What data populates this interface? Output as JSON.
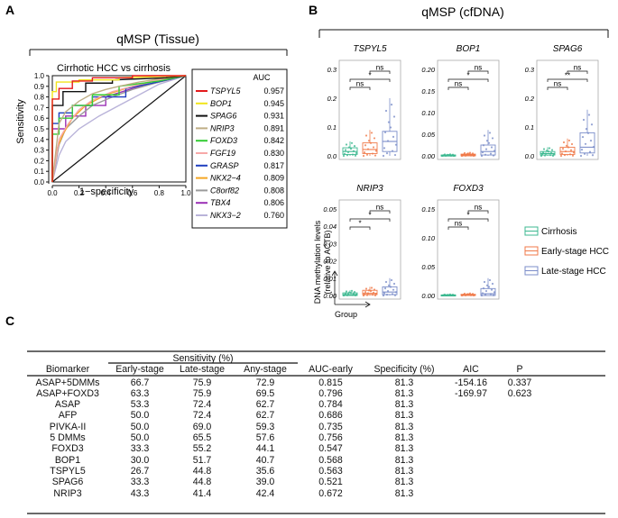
{
  "panel_labels": {
    "a": "A",
    "b": "B",
    "c": "C"
  },
  "chart_data": [
    {
      "type": "line",
      "panel": "A",
      "header": "qMSP (Tissue)",
      "title": "Cirrhotic HCC vs cirrhosis",
      "xlabel": "1−specificity",
      "ylabel": "Sensitivity",
      "xlim": [
        0.0,
        1.0
      ],
      "ylim": [
        0.0,
        1.0
      ],
      "x_ticks": [
        "0.0",
        "0.2",
        "0.4",
        "0.6",
        "0.8",
        "1.0"
      ],
      "y_ticks": [
        "0.0",
        "0.1",
        "0.2",
        "0.3",
        "0.4",
        "0.5",
        "0.6",
        "0.7",
        "0.8",
        "0.9",
        "1.0"
      ],
      "legend_header": "AUC",
      "series": [
        {
          "name": "TSPYL5",
          "auc": "0.957",
          "color": "#e31a1c",
          "x": [
            0,
            0,
            0.05,
            0.05,
            0.15,
            0.15,
            0.3,
            0.3,
            0.6,
            0.6,
            0.85,
            1.0
          ],
          "y": [
            0,
            0.78,
            0.78,
            0.88,
            0.88,
            0.95,
            0.95,
            0.98,
            0.98,
            1.0,
            1.0,
            1.0
          ]
        },
        {
          "name": "BOP1",
          "auc": "0.945",
          "color": "#f2e41b",
          "x": [
            0,
            0,
            0.03,
            0.03,
            0.2,
            0.2,
            0.5,
            0.5,
            1.0
          ],
          "y": [
            0,
            0.85,
            0.85,
            0.94,
            0.94,
            0.96,
            0.96,
            0.98,
            1.0
          ]
        },
        {
          "name": "SPAG6",
          "auc": "0.931",
          "color": "#111111",
          "x": [
            0,
            0,
            0.08,
            0.08,
            0.25,
            0.25,
            0.45,
            0.45,
            0.85,
            1.0
          ],
          "y": [
            0,
            0.72,
            0.72,
            0.85,
            0.85,
            0.93,
            0.93,
            0.96,
            0.98,
            1.0
          ]
        },
        {
          "name": "NRIP3",
          "auc": "0.891",
          "color": "#bfae85",
          "x": [
            0,
            0.05,
            0.1,
            0.2,
            0.3,
            0.4,
            0.5,
            0.65,
            0.8,
            1.0
          ],
          "y": [
            0,
            0.55,
            0.66,
            0.76,
            0.83,
            0.87,
            0.9,
            0.94,
            0.97,
            1.0
          ]
        },
        {
          "name": "FOXD3",
          "auc": "0.842",
          "color": "#33cc33",
          "x": [
            0,
            0,
            0.05,
            0.05,
            0.15,
            0.15,
            0.3,
            0.3,
            0.5,
            0.5,
            0.8,
            1.0
          ],
          "y": [
            0,
            0.45,
            0.45,
            0.6,
            0.6,
            0.72,
            0.72,
            0.82,
            0.82,
            0.9,
            0.95,
            1.0
          ]
        },
        {
          "name": "FGF19",
          "auc": "0.830",
          "color": "#f7a9a8",
          "x": [
            0,
            0.05,
            0.12,
            0.2,
            0.3,
            0.45,
            0.6,
            0.75,
            1.0
          ],
          "y": [
            0,
            0.4,
            0.55,
            0.68,
            0.77,
            0.85,
            0.9,
            0.95,
            1.0
          ]
        },
        {
          "name": "GRASP",
          "auc": "0.817",
          "color": "#1f3fbf",
          "x": [
            0,
            0,
            0.05,
            0.05,
            0.15,
            0.15,
            0.3,
            0.3,
            0.55,
            0.55,
            0.75,
            1.0
          ],
          "y": [
            0,
            0.55,
            0.55,
            0.65,
            0.65,
            0.72,
            0.72,
            0.8,
            0.8,
            0.88,
            0.93,
            1.0
          ]
        },
        {
          "name": "NKX2−4",
          "auc": "0.809",
          "color": "#f5a623",
          "x": [
            0,
            0.03,
            0.08,
            0.15,
            0.25,
            0.4,
            0.6,
            0.8,
            1.0
          ],
          "y": [
            0,
            0.3,
            0.45,
            0.6,
            0.72,
            0.82,
            0.9,
            0.96,
            1.0
          ]
        },
        {
          "name": "C8orf82",
          "auc": "0.808",
          "color": "#9b9b9b",
          "x": [
            0,
            0.05,
            0.1,
            0.2,
            0.3,
            0.45,
            0.6,
            0.8,
            1.0
          ],
          "y": [
            0,
            0.35,
            0.5,
            0.62,
            0.72,
            0.8,
            0.87,
            0.94,
            1.0
          ]
        },
        {
          "name": "TBX4",
          "auc": "0.806",
          "color": "#9b30b5",
          "x": [
            0,
            0,
            0.1,
            0.1,
            0.25,
            0.25,
            0.4,
            0.4,
            0.6,
            0.8,
            1.0
          ],
          "y": [
            0,
            0.5,
            0.5,
            0.62,
            0.62,
            0.72,
            0.72,
            0.8,
            0.88,
            0.94,
            1.0
          ]
        },
        {
          "name": "NKX3−2",
          "auc": "0.760",
          "color": "#b9b3d9",
          "x": [
            0,
            0.05,
            0.1,
            0.2,
            0.35,
            0.5,
            0.65,
            0.8,
            1.0
          ],
          "y": [
            0,
            0.25,
            0.38,
            0.5,
            0.62,
            0.72,
            0.82,
            0.92,
            1.0
          ]
        }
      ],
      "reference_line": {
        "x": [
          0,
          1
        ],
        "y": [
          0,
          1
        ],
        "color": "#111111"
      }
    },
    {
      "type": "box",
      "panel": "B",
      "header": "qMSP (cfDNA)",
      "ylabel": "DNA methylation levels\n(relative to ACTB)",
      "xlabel": "Group",
      "groups": [
        {
          "name": "Cirrhosis",
          "color": "#3cb890"
        },
        {
          "name": "Early-stage HCC",
          "color": "#f07a4a"
        },
        {
          "name": "Late-stage HCC",
          "color": "#7b8dc9"
        }
      ],
      "subplots": [
        {
          "gene": "TSPYL5",
          "ylim": [
            0,
            0.3
          ],
          "ticks": [
            "0.0",
            "0.1",
            "0.2",
            "0.3"
          ],
          "tick_values": [
            0,
            0.1,
            0.2,
            0.3
          ],
          "boxes": [
            {
              "q1": 0.005,
              "median": 0.015,
              "q3": 0.028,
              "wlo": 0.0,
              "whi": 0.05
            },
            {
              "q1": 0.008,
              "median": 0.022,
              "q3": 0.045,
              "wlo": 0.0,
              "whi": 0.09
            },
            {
              "q1": 0.015,
              "median": 0.05,
              "q3": 0.085,
              "wlo": 0.0,
              "whi": 0.2
            }
          ],
          "sig": [
            {
              "pair": [
                0,
                1
              ],
              "label": "ns",
              "level": 0
            },
            {
              "pair": [
                0,
                2
              ],
              "label": "*",
              "level": 1
            },
            {
              "pair": [
                1,
                2
              ],
              "label": "ns",
              "level": 2
            }
          ]
        },
        {
          "gene": "BOP1",
          "ylim": [
            0,
            0.2
          ],
          "ticks": [
            "0.00",
            "0.05",
            "0.10",
            "0.15",
            "0.20"
          ],
          "tick_values": [
            0,
            0.05,
            0.1,
            0.15,
            0.2
          ],
          "boxes": [
            {
              "q1": 0.0,
              "median": 0.001,
              "q3": 0.002,
              "wlo": 0.0,
              "whi": 0.004
            },
            {
              "q1": 0.0,
              "median": 0.002,
              "q3": 0.004,
              "wlo": 0.0,
              "whi": 0.008
            },
            {
              "q1": 0.002,
              "median": 0.01,
              "q3": 0.025,
              "wlo": 0.0,
              "whi": 0.06
            }
          ],
          "sig": [
            {
              "pair": [
                0,
                1
              ],
              "label": "ns",
              "level": 0
            },
            {
              "pair": [
                0,
                2
              ],
              "label": "*",
              "level": 1
            },
            {
              "pair": [
                1,
                2
              ],
              "label": "ns",
              "level": 2
            }
          ]
        },
        {
          "gene": "SPAG6",
          "ylim": [
            0,
            0.3
          ],
          "ticks": [
            "0.0",
            "0.1",
            "0.2",
            "0.3"
          ],
          "tick_values": [
            0,
            0.1,
            0.2,
            0.3
          ],
          "boxes": [
            {
              "q1": 0.003,
              "median": 0.008,
              "q3": 0.015,
              "wlo": 0.0,
              "whi": 0.03
            },
            {
              "q1": 0.005,
              "median": 0.015,
              "q3": 0.03,
              "wlo": 0.0,
              "whi": 0.06
            },
            {
              "q1": 0.01,
              "median": 0.03,
              "q3": 0.08,
              "wlo": 0.0,
              "whi": 0.16
            }
          ],
          "sig": [
            {
              "pair": [
                0,
                1
              ],
              "label": "ns",
              "level": 0
            },
            {
              "pair": [
                0,
                2
              ],
              "label": "**",
              "level": 1
            },
            {
              "pair": [
                1,
                2
              ],
              "label": "ns",
              "level": 2
            }
          ]
        },
        {
          "gene": "NRIP3",
          "ylim": [
            0,
            0.05
          ],
          "ticks": [
            "0.00",
            "0.01",
            "0.02",
            "0.03",
            "0.04",
            "0.05"
          ],
          "tick_values": [
            0,
            0.01,
            0.02,
            0.03,
            0.04,
            0.05
          ],
          "boxes": [
            {
              "q1": 0.0,
              "median": 0.0005,
              "q3": 0.0015,
              "wlo": 0.0,
              "whi": 0.003
            },
            {
              "q1": 0.0005,
              "median": 0.0012,
              "q3": 0.003,
              "wlo": 0.0,
              "whi": 0.005
            },
            {
              "q1": 0.0005,
              "median": 0.002,
              "q3": 0.005,
              "wlo": 0.0,
              "whi": 0.01
            }
          ],
          "sig": [
            {
              "pair": [
                0,
                1
              ],
              "label": "*",
              "level": 0
            },
            {
              "pair": [
                0,
                2
              ],
              "label": "*",
              "level": 1
            },
            {
              "pair": [
                1,
                2
              ],
              "label": "ns",
              "level": 2
            }
          ]
        },
        {
          "gene": "FOXD3",
          "ylim": [
            0,
            0.15
          ],
          "ticks": [
            "0.00",
            "0.05",
            "0.10",
            "0.15"
          ],
          "tick_values": [
            0,
            0.05,
            0.1,
            0.15
          ],
          "boxes": [
            {
              "q1": 0.0,
              "median": 0.0005,
              "q3": 0.001,
              "wlo": 0.0,
              "whi": 0.002
            },
            {
              "q1": 0.0,
              "median": 0.0008,
              "q3": 0.002,
              "wlo": 0.0,
              "whi": 0.004
            },
            {
              "q1": 0.0,
              "median": 0.003,
              "q3": 0.012,
              "wlo": 0.0,
              "whi": 0.03
            }
          ],
          "sig": [
            {
              "pair": [
                0,
                1
              ],
              "label": "ns",
              "level": 0
            },
            {
              "pair": [
                0,
                2
              ],
              "label": "*",
              "level": 1
            },
            {
              "pair": [
                1,
                2
              ],
              "label": "ns",
              "level": 2
            }
          ]
        }
      ]
    },
    {
      "type": "table",
      "panel": "C",
      "group_header": "Sensitivity (%)",
      "columns": [
        "Biomarker",
        "Early-stage",
        "Late-stage",
        "Any-stage",
        "AUC-early",
        "Specificity (%)",
        "AIC",
        "P"
      ],
      "rows": [
        [
          "ASAP+5DMMs",
          "66.7",
          "75.9",
          "72.9",
          "0.815",
          "81.3",
          "-154.16",
          "0.337"
        ],
        [
          "ASAP+FOXD3",
          "63.3",
          "75.9",
          "69.5",
          "0.796",
          "81.3",
          "-169.97",
          "0.623"
        ],
        [
          "ASAP",
          "53.3",
          "72.4",
          "62.7",
          "0.784",
          "81.3",
          "",
          ""
        ],
        [
          "AFP",
          "50.0",
          "72.4",
          "62.7",
          "0.686",
          "81.3",
          "",
          ""
        ],
        [
          "PIVKA-II",
          "50.0",
          "69.0",
          "59.3",
          "0.735",
          "81.3",
          "",
          ""
        ],
        [
          "5 DMMs",
          "50.0",
          "65.5",
          "57.6",
          "0.756",
          "81.3",
          "",
          ""
        ],
        [
          "FOXD3",
          "33.3",
          "55.2",
          "44.1",
          "0.547",
          "81.3",
          "",
          ""
        ],
        [
          "BOP1",
          "30.0",
          "51.7",
          "40.7",
          "0.568",
          "81.3",
          "",
          ""
        ],
        [
          "TSPYL5",
          "26.7",
          "44.8",
          "35.6",
          "0.563",
          "81.3",
          "",
          ""
        ],
        [
          "SPAG6",
          "33.3",
          "44.8",
          "39.0",
          "0.521",
          "81.3",
          "",
          ""
        ],
        [
          "NRIP3",
          "43.3",
          "41.4",
          "42.4",
          "0.672",
          "81.3",
          "",
          ""
        ]
      ]
    }
  ]
}
